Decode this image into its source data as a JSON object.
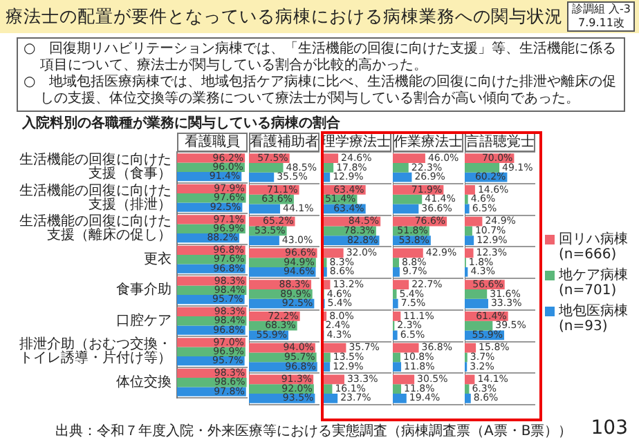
{
  "chart_data": [
    {
      "type": "bar",
      "orientation": "horizontal",
      "title": "看護職員",
      "subtitle": "入院料別の各職種が業務に関与している病棟の割合",
      "annotations": [
        "療法士の配置が要件となっている病棟における病棟業務への関与状況",
        "診調組 入-3",
        "7.9.11改",
        "○　回復期リハビリテーション病棟では、「生活機能の回復に向けた支援」等、生活機能に係る項目について、療法士が関与している割合が比較的高かった。",
        "○　地域包括医療病棟では、地域包括ケア病棟に比べ、生活機能の回復に向けた排泄や離床の促しの支援、体位交換等の業務について療法士が関与している割合が高い傾向であった。",
        "出典：令和７年度入院・外来医療等における実態調査（病棟調査票（A票・B票））",
        "103"
      ],
      "categories": [
        "生活機能の回復に向けた支援（食事）",
        "生活機能の回復に向けた支援（排泄）",
        "生活機能の回復に向けた支援（離床の促し）",
        "更衣",
        "食事介助",
        "口腔ケア",
        "排泄介助（おむつ交換・トイレ誘導・片付け等）",
        "体位交換"
      ],
      "xlim": [
        0,
        100
      ],
      "tick_labels": "y",
      "grid": "y",
      "series": [
        {
          "color": "#f0646e",
          "values": [
            96.2,
            97.9,
            97.1,
            96.8,
            98.3,
            98.3,
            97.0,
            98.3
          ],
          "value_labels": [
            "96.2%",
            "97.9%",
            "97.1%",
            "96.8%",
            "98.3%",
            "98.3%",
            "97.0%",
            "98.3%"
          ]
        },
        {
          "color": "#5cb87a",
          "values": [
            96.0,
            97.6,
            96.9,
            97.6,
            98.4,
            98.4,
            96.9,
            98.6
          ],
          "value_labels": [
            "96.0%",
            "97.6%",
            "96.9%",
            "97.6%",
            "98.4%",
            "98.4%",
            "96.9%",
            "98.6%"
          ]
        },
        {
          "color": "#2f8fe0",
          "values": [
            91.4,
            92.5,
            88.2,
            96.8,
            95.7,
            96.8,
            95.7,
            97.8
          ],
          "value_labels": [
            "91.4%",
            "92.5%",
            "88.2%",
            "96.8%",
            "95.7%",
            "96.8%",
            "95.7%",
            "97.8%"
          ]
        }
      ]
    },
    {
      "type": "bar",
      "orientation": "horizontal",
      "title": "看護補助者",
      "categories": [
        "生活機能の回復に向けた支援（食事）",
        "生活機能の回復に向けた支援（排泄）",
        "生活機能の回復に向けた支援（離床の促し）",
        "更衣",
        "食事介助",
        "口腔ケア",
        "排泄介助（おむつ交換・トイレ誘導・片付け等）",
        "体位交換"
      ],
      "xlim": [
        0,
        100
      ],
      "tick_labels": false,
      "grid": "y",
      "series": [
        {
          "color": "#f0646e",
          "values": [
            57.5,
            71.1,
            65.2,
            96.6,
            88.3,
            72.2,
            94.0,
            91.3
          ],
          "value_labels": [
            "57.5%",
            "71.1%",
            "65.2%",
            "96.6%",
            "88.3%",
            "72.2%",
            "94.0%",
            "91.3%"
          ]
        },
        {
          "color": "#5cb87a",
          "values": [
            48.5,
            63.6,
            53.5,
            94.9,
            89.9,
            68.3,
            95.7,
            92.0
          ],
          "value_labels": [
            "48.5%",
            "63.6%",
            "53.5%",
            "94.9%",
            "89.9%",
            "68.3%",
            "95.7%",
            "92.0%"
          ]
        },
        {
          "color": "#2f8fe0",
          "values": [
            35.5,
            44.1,
            43.0,
            94.6,
            92.5,
            55.9,
            96.8,
            93.5
          ],
          "value_labels": [
            "35.5%",
            "44.1%",
            "43.0%",
            "94.6%",
            "92.5%",
            "55.9%",
            "96.8%",
            "93.5%"
          ]
        }
      ]
    },
    {
      "type": "bar",
      "orientation": "horizontal",
      "title": "理学療法士",
      "categories": [
        "生活機能の回復に向けた支援（食事）",
        "生活機能の回復に向けた支援（排泄）",
        "生活機能の回復に向けた支援（離床の促し）",
        "更衣",
        "食事介助",
        "口腔ケア",
        "排泄介助（おむつ交換・トイレ誘導・片付け等）",
        "体位交換"
      ],
      "xlim": [
        0,
        100
      ],
      "tick_labels": false,
      "grid": "y",
      "series": [
        {
          "color": "#f0646e",
          "values": [
            24.6,
            63.4,
            84.5,
            32.0,
            13.2,
            8.0,
            35.7,
            33.3
          ],
          "value_labels": [
            "24.6%",
            "63.4%",
            "84.5%",
            "32.0%",
            "13.2%",
            "8.0%",
            "35.7%",
            "33.3%"
          ]
        },
        {
          "color": "#5cb87a",
          "values": [
            17.8,
            51.4,
            78.3,
            8.3,
            4.6,
            2.4,
            13.5,
            16.1
          ],
          "value_labels": [
            "17.8%",
            "51.4%",
            "78.3%",
            "8.3%",
            "4.6%",
            "2.4%",
            "13.5%",
            "16.1%"
          ]
        },
        {
          "color": "#2f8fe0",
          "values": [
            12.9,
            63.4,
            82.8,
            8.6,
            5.4,
            4.3,
            12.9,
            23.7
          ],
          "value_labels": [
            "12.9%",
            "63.4%",
            "82.8%",
            "8.6%",
            "5.4%",
            "4.3%",
            "12.9%",
            "23.7%"
          ]
        }
      ]
    },
    {
      "type": "bar",
      "orientation": "horizontal",
      "title": "作業療法士",
      "categories": [
        "生活機能の回復に向けた支援（食事）",
        "生活機能の回復に向けた支援（排泄）",
        "生活機能の回復に向けた支援（離床の促し）",
        "更衣",
        "食事介助",
        "口腔ケア",
        "排泄介助（おむつ交換・トイレ誘導・片付け等）",
        "体位交換"
      ],
      "xlim": [
        0,
        100
      ],
      "tick_labels": false,
      "grid": "y",
      "series": [
        {
          "color": "#f0646e",
          "values": [
            46.0,
            71.9,
            76.6,
            42.9,
            22.7,
            11.1,
            36.8,
            30.5
          ],
          "value_labels": [
            "46.0%",
            "71.9%",
            "76.6%",
            "42.9%",
            "22.7%",
            "11.1%",
            "36.8%",
            "30.5%"
          ]
        },
        {
          "color": "#5cb87a",
          "values": [
            22.3,
            41.4,
            51.8,
            8.8,
            5.4,
            2.3,
            10.8,
            11.8
          ],
          "value_labels": [
            "22.3%",
            "41.4%",
            "51.8%",
            "8.8%",
            "5.4%",
            "2.3%",
            "10.8%",
            "11.8%"
          ]
        },
        {
          "color": "#2f8fe0",
          "values": [
            26.9,
            36.6,
            53.8,
            9.7,
            7.5,
            6.5,
            11.8,
            19.4
          ],
          "value_labels": [
            "26.9%",
            "36.6%",
            "53.8%",
            "9.7%",
            "7.5%",
            "6.5%",
            "11.8%",
            "19.4%"
          ]
        }
      ]
    },
    {
      "type": "bar",
      "orientation": "horizontal",
      "title": "言語聴覚士",
      "categories": [
        "生活機能の回復に向けた支援（食事）",
        "生活機能の回復に向けた支援（排泄）",
        "生活機能の回復に向けた支援（離床の促し）",
        "更衣",
        "食事介助",
        "口腔ケア",
        "排泄介助（おむつ交換・トイレ誘導・片付け等）",
        "体位交換"
      ],
      "xlim": [
        0,
        100
      ],
      "tick_labels": false,
      "grid": "y",
      "legend": "right",
      "series": [
        {
          "name": "回リハ病棟(n=666)",
          "color": "#f0646e",
          "values": [
            70.0,
            14.6,
            24.9,
            12.3,
            56.6,
            61.4,
            15.8,
            14.1
          ],
          "value_labels": [
            "70.0%",
            "14.6%",
            "24.9%",
            "12.3%",
            "56.6%",
            "61.4%",
            "15.8%",
            "14.1%"
          ]
        },
        {
          "name": "地ケア病棟 (n=701)",
          "color": "#5cb87a",
          "values": [
            49.1,
            4.6,
            10.7,
            1.8,
            31.6,
            39.5,
            3.7,
            6.3
          ],
          "value_labels": [
            "49.1%",
            "4.6%",
            "10.7%",
            "1.8%",
            "31.6%",
            "39.5%",
            "3.7%",
            "6.3%"
          ]
        },
        {
          "name": "地包医病棟 (n=93)",
          "color": "#2f8fe0",
          "values": [
            60.2,
            6.5,
            12.9,
            4.3,
            33.3,
            55.9,
            3.2,
            8.6
          ],
          "value_labels": [
            "60.2%",
            "6.5%",
            "12.9%",
            "4.3%",
            "33.3%",
            "55.9%",
            "3.2%",
            "8.6%"
          ]
        }
      ]
    }
  ]
}
